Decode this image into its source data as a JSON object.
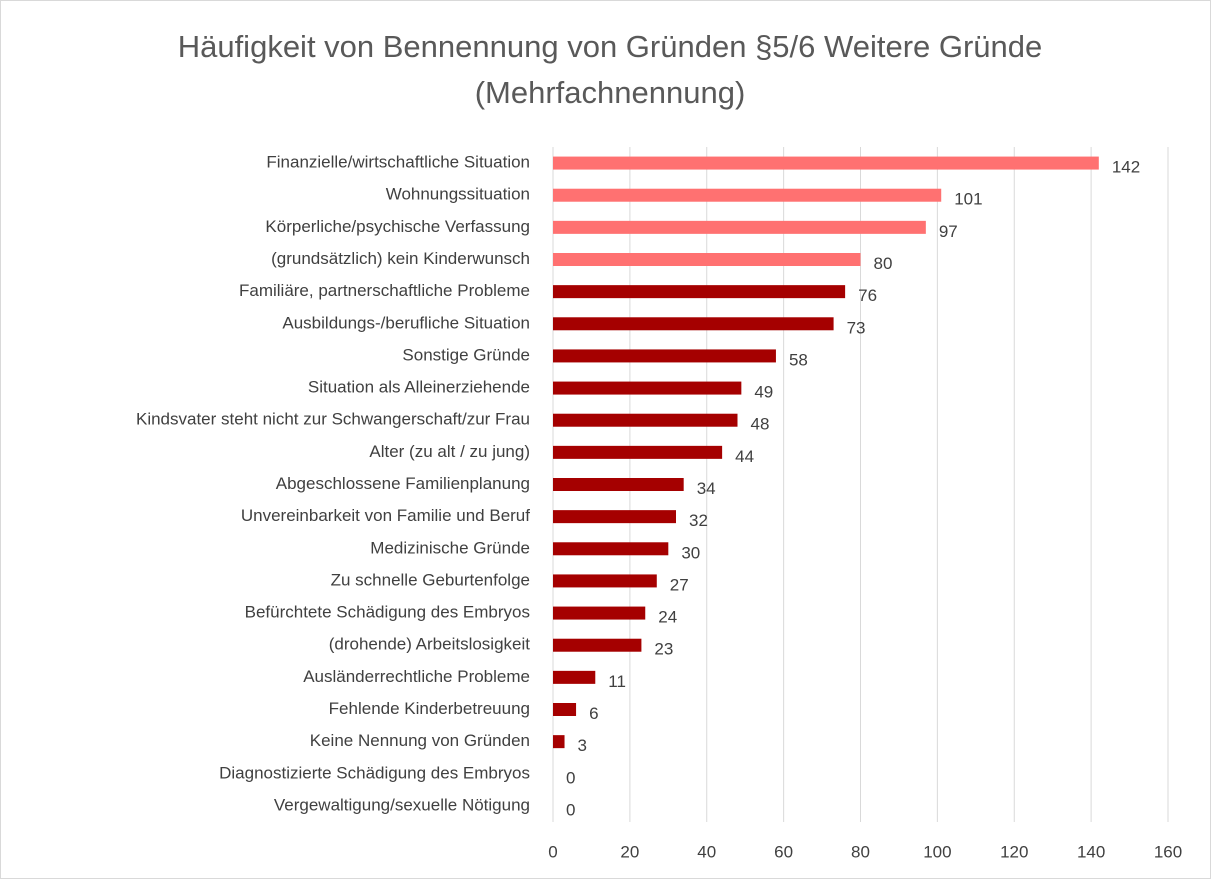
{
  "chart_data": {
    "type": "barh",
    "title": "Häufigkeit von Bennennung von Gründen §5/6 Weitere Gründe (Mehrfachnennung)",
    "categories": [
      "Finanzielle/wirtschaftliche Situation",
      "Wohnungssituation",
      "Körperliche/psychische Verfassung",
      "(grundsätzlich) kein Kinderwunsch",
      "Familiäre, partnerschaftliche Probleme",
      "Ausbildungs-/berufliche Situation",
      "Sonstige Gründe",
      "Situation als Alleinerziehende",
      "Kindsvater steht nicht zur Schwangerschaft/zur Frau",
      "Alter (zu alt / zu jung)",
      "Abgeschlossene Familienplanung",
      "Unvereinbarkeit von Familie und Beruf",
      "Medizinische Gründe",
      "Zu schnelle Geburtenfolge",
      "Befürchtete Schädigung des Embryos",
      "(drohende) Arbeitslosigkeit",
      "Ausländerrechtliche Probleme",
      "Fehlende Kinderbetreuung",
      "Keine Nennung von Gründen",
      "Diagnostizierte Schädigung des Embryos",
      "Vergewaltigung/sexuelle Nötigung"
    ],
    "values": [
      142,
      101,
      97,
      80,
      76,
      73,
      58,
      49,
      48,
      44,
      34,
      32,
      30,
      27,
      24,
      23,
      11,
      6,
      3,
      0,
      0
    ],
    "colors": [
      "#ff7171",
      "#ff7171",
      "#ff7171",
      "#ff7171",
      "#a50000",
      "#a50000",
      "#a50000",
      "#a50000",
      "#a50000",
      "#a50000",
      "#a50000",
      "#a50000",
      "#a50000",
      "#a50000",
      "#a50000",
      "#a50000",
      "#a50000",
      "#a50000",
      "#a50000",
      "#a50000",
      "#a50000"
    ],
    "xlim": [
      0,
      160
    ],
    "xticks": [
      0,
      20,
      40,
      60,
      80,
      100,
      120,
      140,
      160
    ],
    "grid": true
  }
}
